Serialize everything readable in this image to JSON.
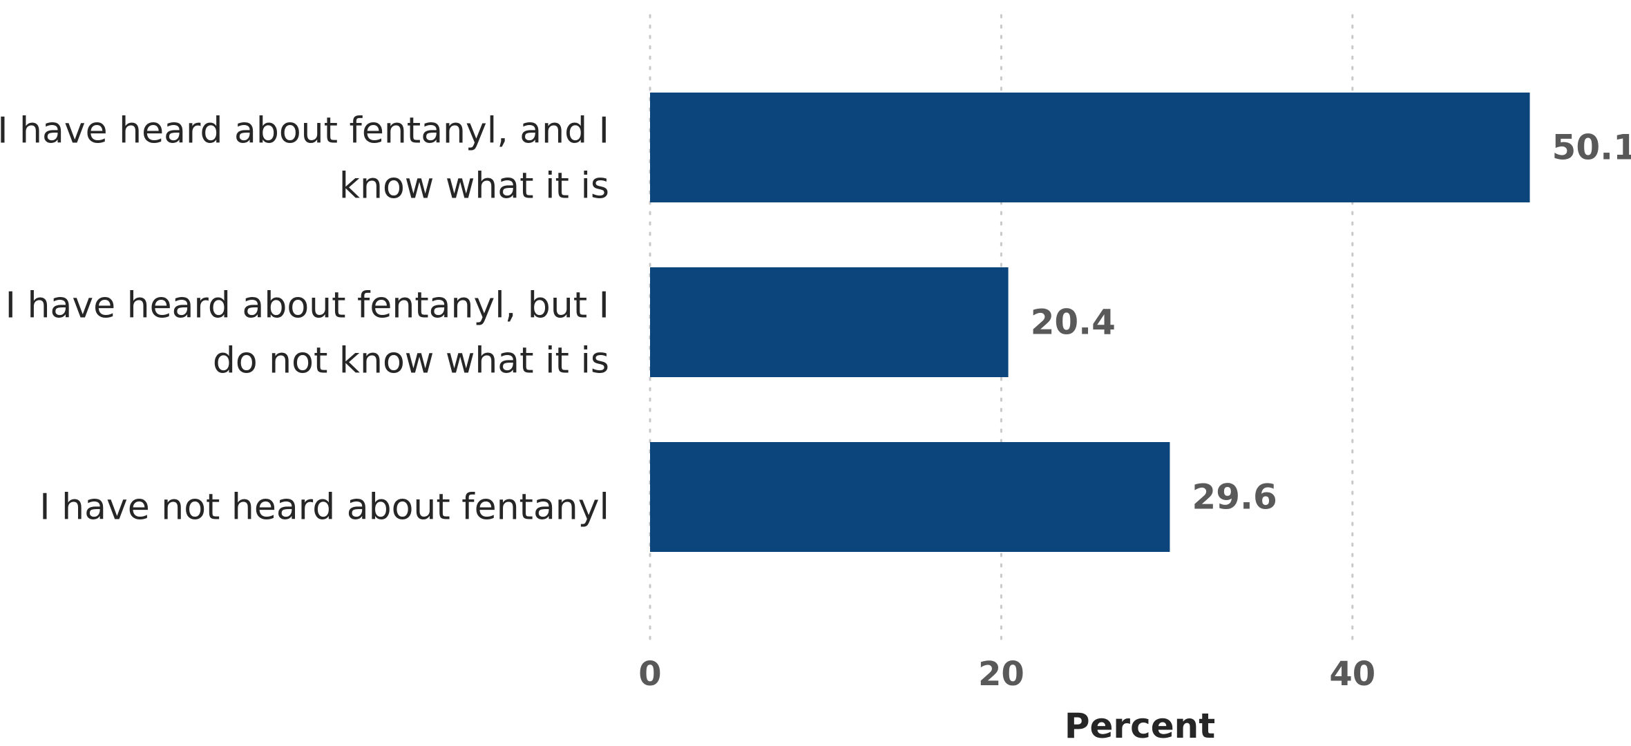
{
  "chart_data": {
    "type": "bar",
    "orientation": "horizontal",
    "categories": [
      "I have heard about fentanyl, and I know what it is",
      "I have heard about fentanyl, but I do not know what it is",
      "I have not  heard about fentanyl"
    ],
    "category_lines": [
      [
        "I have heard about fentanyl, and I",
        "know what it is"
      ],
      [
        "I have heard about fentanyl, but I",
        "do not know what it is"
      ],
      [
        "I have not  heard about fentanyl"
      ]
    ],
    "values": [
      50.1,
      20.4,
      29.6
    ],
    "value_labels": [
      "50.1",
      "20.4",
      "29.6"
    ],
    "xlabel": "Percent",
    "xlim": [
      0,
      55
    ],
    "xticks": [
      0,
      20,
      40
    ],
    "xtick_labels": [
      "0",
      "20",
      "40"
    ],
    "grid": true,
    "legend": "none",
    "bar_color": "#0c457c",
    "value_label_color": "#595959",
    "tick_label_color": "#595959",
    "category_label_color": "#262626",
    "gridline_color": "#c8c8c8"
  }
}
